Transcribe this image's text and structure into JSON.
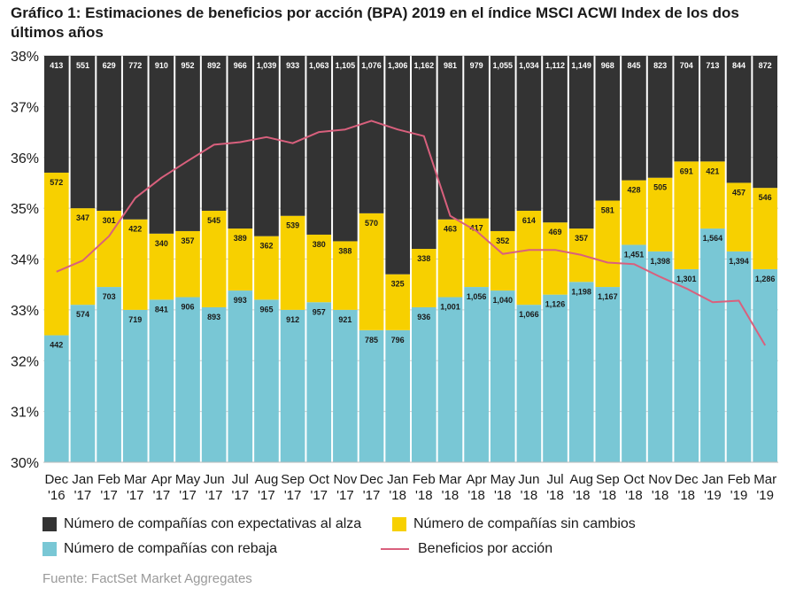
{
  "title": "Gráfico 1: Estimaciones de beneficios por acción (BPA) 2019 en el índice MSCI ACWI Index de los dos últimos años",
  "source": "Fuente: FactSet Market Aggregates",
  "colors": {
    "alza": "#333333",
    "sin_cambios": "#f7d000",
    "rebaja": "#79c7d5",
    "bpa": "#d9607d"
  },
  "legend": {
    "alza": "Número de compañías con expectativas al alza",
    "sin_cambios": "Número de compañías sin cambios",
    "rebaja": "Número de compañías con rebaja",
    "bpa": "Beneficios por acción"
  },
  "chart_data": {
    "type": "bar",
    "stacked": true,
    "categories": [
      [
        "Dec",
        "'16"
      ],
      [
        "Jan",
        "'17"
      ],
      [
        "Feb",
        "'17"
      ],
      [
        "Mar",
        "'17"
      ],
      [
        "Apr",
        "'17"
      ],
      [
        "May",
        "'17"
      ],
      [
        "Jun",
        "'17"
      ],
      [
        "Jul",
        "'17"
      ],
      [
        "Aug",
        "'17"
      ],
      [
        "Sep",
        "'17"
      ],
      [
        "Oct",
        "'17"
      ],
      [
        "Nov",
        "'17"
      ],
      [
        "Dec",
        "'17"
      ],
      [
        "Jan",
        "'18"
      ],
      [
        "Feb",
        "'18"
      ],
      [
        "Mar",
        "'18"
      ],
      [
        "Apr",
        "'18"
      ],
      [
        "May",
        "'18"
      ],
      [
        "Jun",
        "'18"
      ],
      [
        "Jul",
        "'18"
      ],
      [
        "Aug",
        "'18"
      ],
      [
        "Sep",
        "'18"
      ],
      [
        "Oct",
        "'18"
      ],
      [
        "Nov",
        "'18"
      ],
      [
        "Dec",
        "'18"
      ],
      [
        "Jan",
        "'19"
      ],
      [
        "Feb",
        "'19"
      ],
      [
        "Mar",
        "'19"
      ]
    ],
    "y_ticks": [
      "30%",
      "31%",
      "32%",
      "33%",
      "34%",
      "35%",
      "36%",
      "37%",
      "38%"
    ],
    "ylim": [
      30,
      38
    ],
    "series": [
      {
        "name": "Número de compañías con rebaja",
        "key": "rebaja",
        "labels": [
          "442",
          "574",
          "703",
          "719",
          "841",
          "906",
          "893",
          "993",
          "965",
          "912",
          "957",
          "921",
          "785",
          "796",
          "936",
          "1,001",
          "1,056",
          "1,040",
          "1,066",
          "1,126",
          "1,198",
          "1,167",
          "1,451",
          "1,398",
          "1,301",
          "1,564",
          "1,394",
          "1,286"
        ],
        "top_values": [
          32.5,
          33.1,
          33.45,
          33.0,
          33.2,
          33.25,
          33.05,
          33.38,
          33.2,
          33.0,
          33.15,
          33.0,
          32.6,
          32.6,
          33.05,
          33.25,
          33.45,
          33.38,
          33.1,
          33.3,
          33.55,
          33.45,
          34.28,
          34.15,
          33.8,
          34.6,
          34.15,
          33.8
        ]
      },
      {
        "name": "Número de compañías sin cambios",
        "key": "sin_cambios",
        "labels": [
          "572",
          "347",
          "301",
          "422",
          "340",
          "357",
          "545",
          "389",
          "362",
          "539",
          "380",
          "388",
          "570",
          "325",
          "338",
          "463",
          "417",
          "352",
          "614",
          "469",
          "357",
          "581",
          "428",
          "505",
          "691",
          "421",
          "457",
          "546"
        ],
        "top_values": [
          35.7,
          35.0,
          34.95,
          34.78,
          34.5,
          34.55,
          34.95,
          34.6,
          34.45,
          34.85,
          34.48,
          34.35,
          34.9,
          33.7,
          34.2,
          34.78,
          34.8,
          34.55,
          34.95,
          34.72,
          34.6,
          35.15,
          35.55,
          35.6,
          35.92,
          35.92,
          35.5,
          35.4
        ]
      },
      {
        "name": "Número de compañías con expectativas al alza",
        "key": "alza",
        "labels": [
          "413",
          "551",
          "629",
          "772",
          "910",
          "952",
          "892",
          "966",
          "1,039",
          "933",
          "1,063",
          "1,105",
          "1,076",
          "1,306",
          "1,162",
          "981",
          "979",
          "1,055",
          "1,034",
          "1,112",
          "1,149",
          "968",
          "845",
          "823",
          "704",
          "713",
          "844",
          "872"
        ],
        "top_values": [
          38,
          38,
          38,
          38,
          38,
          38,
          38,
          38,
          38,
          38,
          38,
          38,
          38,
          38,
          38,
          38,
          38,
          38,
          38,
          38,
          38,
          38,
          38,
          38,
          38,
          38,
          38,
          38
        ]
      }
    ],
    "line": {
      "name": "Beneficios por acción",
      "values": [
        33.75,
        33.97,
        34.45,
        35.2,
        35.6,
        35.93,
        36.25,
        36.3,
        36.4,
        36.28,
        36.5,
        36.55,
        36.72,
        36.55,
        36.42,
        34.85,
        34.55,
        34.1,
        34.18,
        34.18,
        34.08,
        33.93,
        33.9,
        33.65,
        33.42,
        33.15,
        33.18,
        32.3
      ]
    }
  }
}
